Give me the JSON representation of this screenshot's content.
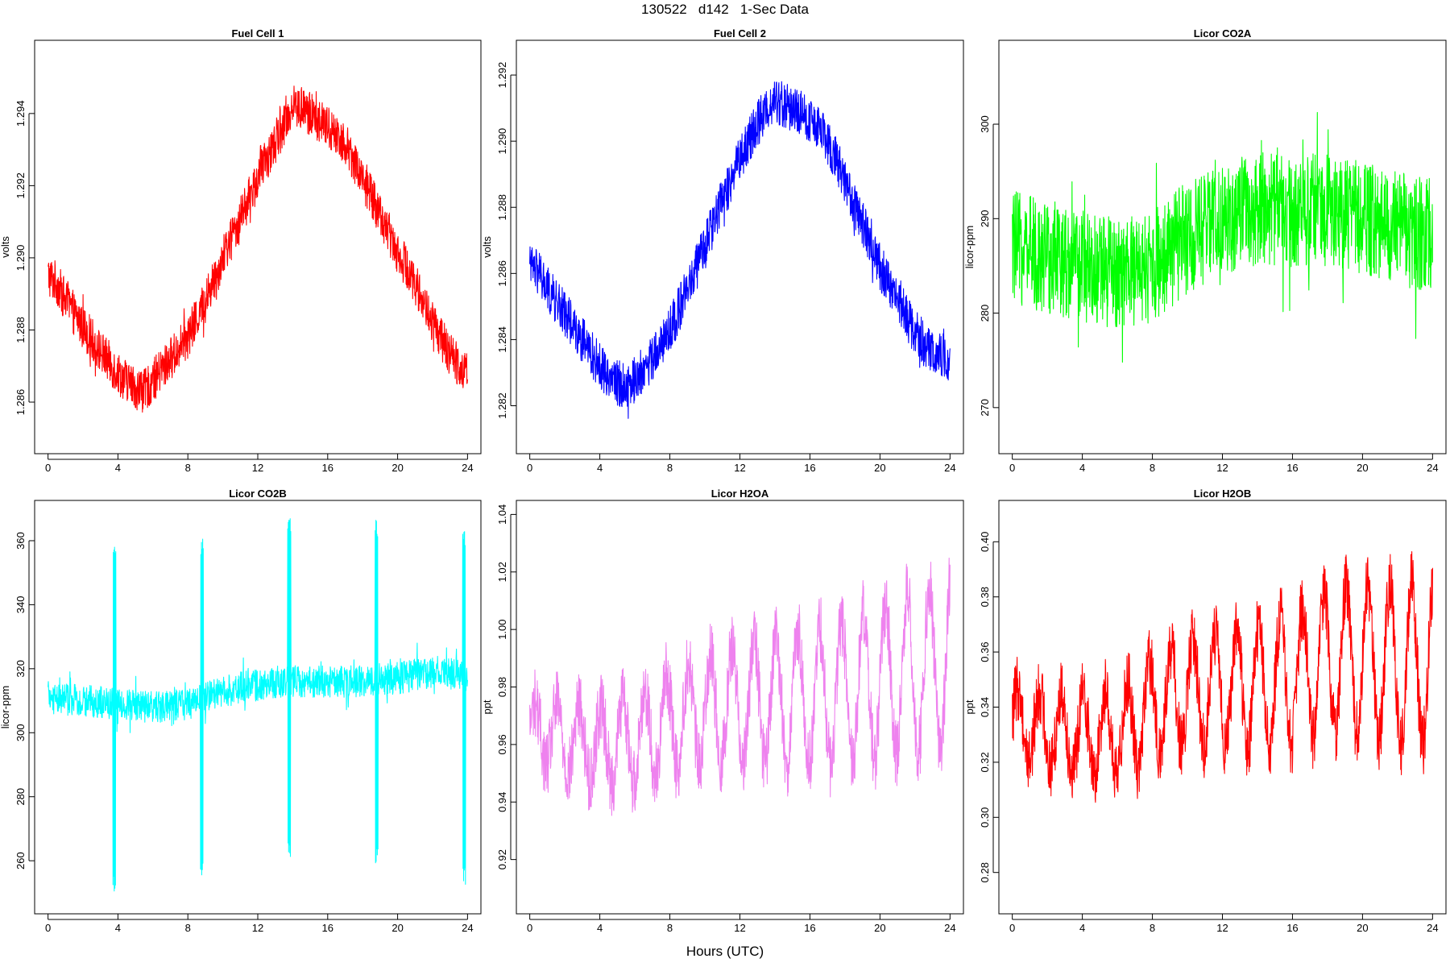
{
  "page": {
    "title": "130522   d142   1-Sec Data",
    "x_label": "Hours (UTC)"
  },
  "chart_data": [
    {
      "type": "line",
      "title": "Fuel Cell 1",
      "ylabel": "volts",
      "xlim": [
        0,
        24
      ],
      "ylim": [
        1.2848,
        1.2958
      ],
      "xticks": [
        0,
        4,
        8,
        12,
        16,
        20,
        24
      ],
      "yticks": [
        1.286,
        1.288,
        1.29,
        1.292,
        1.294
      ],
      "ytick_labels": [
        "1.286",
        "1.288",
        "1.290",
        "1.292",
        "1.294"
      ],
      "color": "#ff0000",
      "x": [
        0,
        0.5,
        1,
        2,
        3,
        4,
        5,
        5.5,
        6,
        7,
        8,
        9,
        10,
        11,
        12,
        13,
        13.5,
        14,
        15,
        16,
        17,
        18,
        19,
        20,
        21,
        22,
        23,
        24
      ],
      "y": [
        1.2895,
        1.2893,
        1.2888,
        1.2881,
        1.2874,
        1.2868,
        1.2864,
        1.2863,
        1.2866,
        1.2872,
        1.2878,
        1.2888,
        1.29,
        1.2911,
        1.2922,
        1.2932,
        1.2937,
        1.2942,
        1.294,
        1.2936,
        1.2932,
        1.2922,
        1.2912,
        1.2902,
        1.2893,
        1.2882,
        1.2873,
        1.2868
      ],
      "band_halfwidth": 0.0006,
      "noise_extra": 0.0004
    },
    {
      "type": "line",
      "title": "Fuel Cell 2",
      "ylabel": "volts",
      "xlim": [
        0,
        24
      ],
      "ylim": [
        1.2808,
        1.2928
      ],
      "xticks": [
        0,
        4,
        8,
        12,
        16,
        20,
        24
      ],
      "yticks": [
        1.282,
        1.284,
        1.286,
        1.288,
        1.29,
        1.292
      ],
      "ytick_labels": [
        "1.282",
        "1.284",
        "1.286",
        "1.288",
        "1.290",
        "1.292"
      ],
      "color": "#0000ff",
      "x": [
        0,
        0.5,
        1,
        2,
        3,
        4,
        5,
        5.5,
        6,
        7,
        8,
        9,
        10,
        11,
        12,
        13,
        13.5,
        14,
        15,
        16,
        17,
        18,
        19,
        20,
        21,
        22,
        23,
        24
      ],
      "y": [
        1.2862,
        1.286,
        1.2855,
        1.2848,
        1.284,
        1.2832,
        1.2827,
        1.2826,
        1.2828,
        1.2834,
        1.2843,
        1.2855,
        1.2868,
        1.2882,
        1.2895,
        1.2905,
        1.291,
        1.2912,
        1.291,
        1.2906,
        1.29,
        1.2888,
        1.2875,
        1.2862,
        1.2852,
        1.2842,
        1.2836,
        1.2833
      ],
      "band_halfwidth": 0.0007,
      "noise_extra": 0.0004
    },
    {
      "type": "line",
      "title": "Licor CO2A",
      "ylabel": "licor-ppm",
      "xlim": [
        0,
        24
      ],
      "ylim": [
        266,
        308
      ],
      "xticks": [
        0,
        4,
        8,
        12,
        16,
        20,
        24
      ],
      "yticks": [
        270,
        280,
        290,
        300
      ],
      "ytick_labels": [
        "270",
        "280",
        "290",
        "300"
      ],
      "color": "#00ff00",
      "x": [
        0,
        2,
        4,
        6,
        8,
        10,
        12,
        14,
        16,
        18,
        20,
        22,
        24
      ],
      "y": [
        287,
        286,
        285,
        284,
        285,
        288,
        290,
        291,
        291,
        291,
        290,
        289,
        288
      ],
      "band_halfwidth": 6,
      "noise_extra": 6
    },
    {
      "type": "line",
      "title": "Licor CO2B",
      "ylabel": "licor-ppm",
      "xlim": [
        0,
        24
      ],
      "ylim": [
        246,
        370
      ],
      "xticks": [
        0,
        4,
        8,
        12,
        16,
        20,
        24
      ],
      "yticks": [
        260,
        280,
        300,
        320,
        340,
        360
      ],
      "ytick_labels": [
        "260",
        "280",
        "300",
        "320",
        "340",
        "360"
      ],
      "color": "#00ffff",
      "x": [
        0,
        2,
        4,
        6,
        8,
        10,
        12,
        14,
        16,
        18,
        20,
        22,
        24
      ],
      "y": [
        311,
        310,
        309,
        308,
        309,
        313,
        315,
        316,
        316,
        316,
        317,
        319,
        318
      ],
      "band_halfwidth": 5,
      "noise_extra": 6,
      "calibration_hours": [
        3.8,
        8.8,
        13.8,
        18.8,
        23.8
      ],
      "calibration_min": [
        250,
        254,
        260,
        259,
        252
      ],
      "calibration_max": [
        360,
        361,
        367,
        367,
        364
      ]
    },
    {
      "type": "line",
      "title": "Licor H2OA",
      "ylabel": "ppt",
      "xlim": [
        0,
        24
      ],
      "ylim": [
        0.904,
        1.042
      ],
      "xticks": [
        0,
        4,
        8,
        12,
        16,
        20,
        24
      ],
      "yticks": [
        0.92,
        0.94,
        0.96,
        0.98,
        1.0,
        1.02,
        1.04
      ],
      "ytick_labels": [
        "0.92",
        "0.94",
        "0.96",
        "0.98",
        "1.00",
        "1.02",
        "1.04"
      ],
      "color": "#ee82ee",
      "x": [
        0,
        2,
        4,
        6,
        8,
        10,
        12,
        14,
        16,
        18,
        20,
        22,
        24
      ],
      "y": [
        0.965,
        0.962,
        0.96,
        0.962,
        0.968,
        0.972,
        0.975,
        0.975,
        0.976,
        0.978,
        0.982,
        0.985,
        0.988
      ],
      "band_halfwidth": 0.012,
      "oscillation_amplitude": [
        0.01,
        0.03
      ],
      "oscillation_period_hours": 1.25
    },
    {
      "type": "line",
      "title": "Licor H2OB",
      "ylabel": "ppt",
      "xlim": [
        0,
        24
      ],
      "ylim": [
        0.268,
        0.412
      ],
      "xticks": [
        0,
        4,
        8,
        12,
        16,
        20,
        24
      ],
      "yticks": [
        0.28,
        0.3,
        0.32,
        0.34,
        0.36,
        0.38,
        0.4
      ],
      "ytick_labels": [
        "0.28",
        "0.30",
        "0.32",
        "0.34",
        "0.36",
        "0.38",
        "0.40"
      ],
      "color": "#ff0000",
      "x": [
        0,
        2,
        4,
        6,
        8,
        10,
        12,
        14,
        16,
        18,
        20,
        22,
        24
      ],
      "y": [
        0.335,
        0.332,
        0.33,
        0.33,
        0.34,
        0.345,
        0.347,
        0.347,
        0.35,
        0.356,
        0.358,
        0.355,
        0.356
      ],
      "band_halfwidth": 0.012,
      "oscillation_amplitude": [
        0.012,
        0.03
      ],
      "oscillation_period_hours": 1.25
    }
  ]
}
